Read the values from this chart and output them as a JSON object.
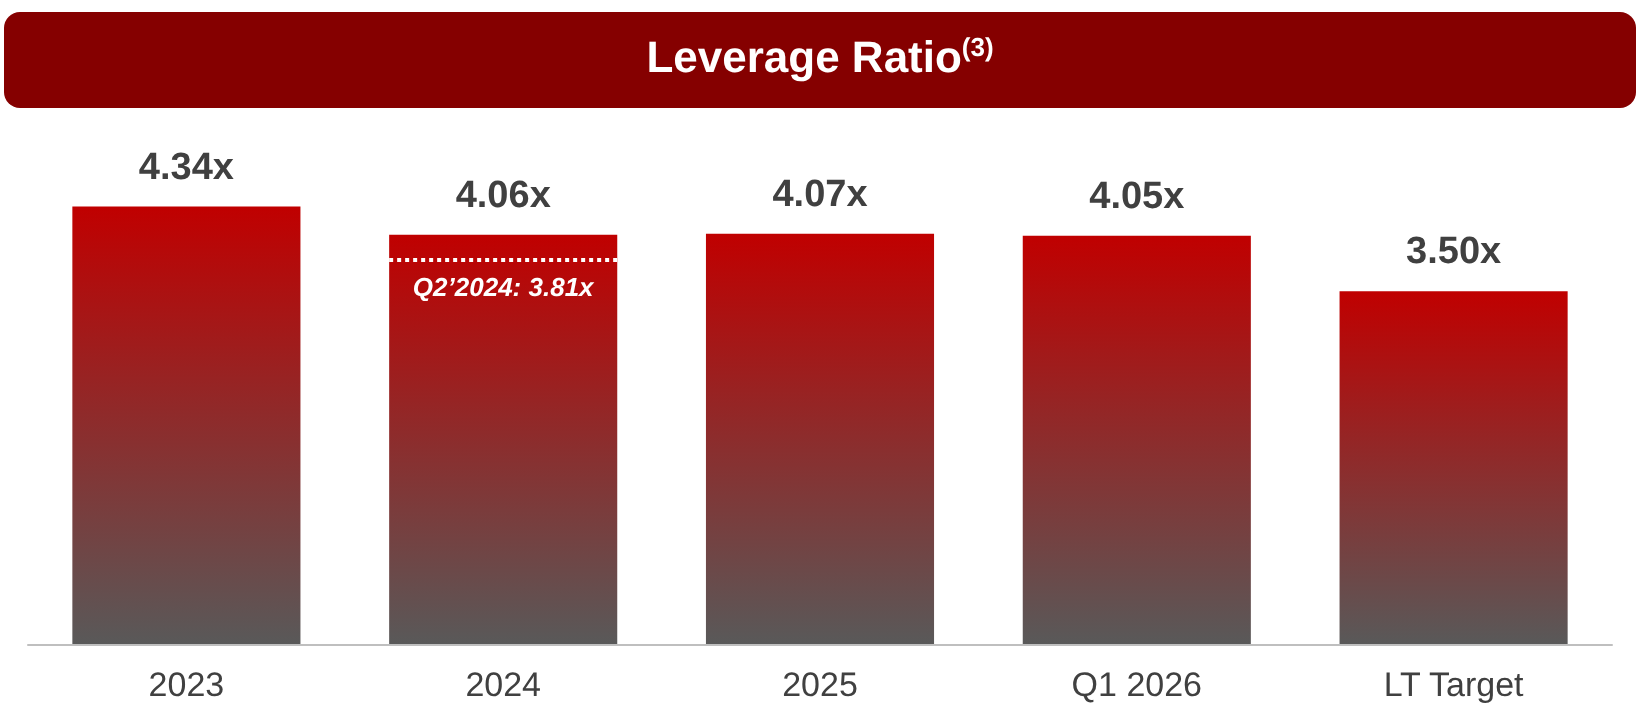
{
  "chart_data": {
    "type": "bar",
    "title": "Leverage Ratio$^{(3)}$",
    "categories": [
      "2023",
      "2024",
      "2025",
      "Q1 2026",
      "LT Target"
    ],
    "values": [
      4.34,
      4.06,
      4.07,
      4.05,
      3.5
    ],
    "value_labels": [
      "4.34x",
      "4.06x",
      "4.07x",
      "4.05x",
      "3.50x"
    ],
    "color": "#c00000",
    "tick_labels": "x",
    "ref_lines": [
      {
        "axis": "y",
        "value": 3.81,
        "color": "#ffffff",
        "line_style": "dotted"
      }
    ],
    "annotations": [
      {
        "text": "Q2’2024: 3.81x",
        "x": "2024",
        "y": 3.81
      }
    ]
  }
}
